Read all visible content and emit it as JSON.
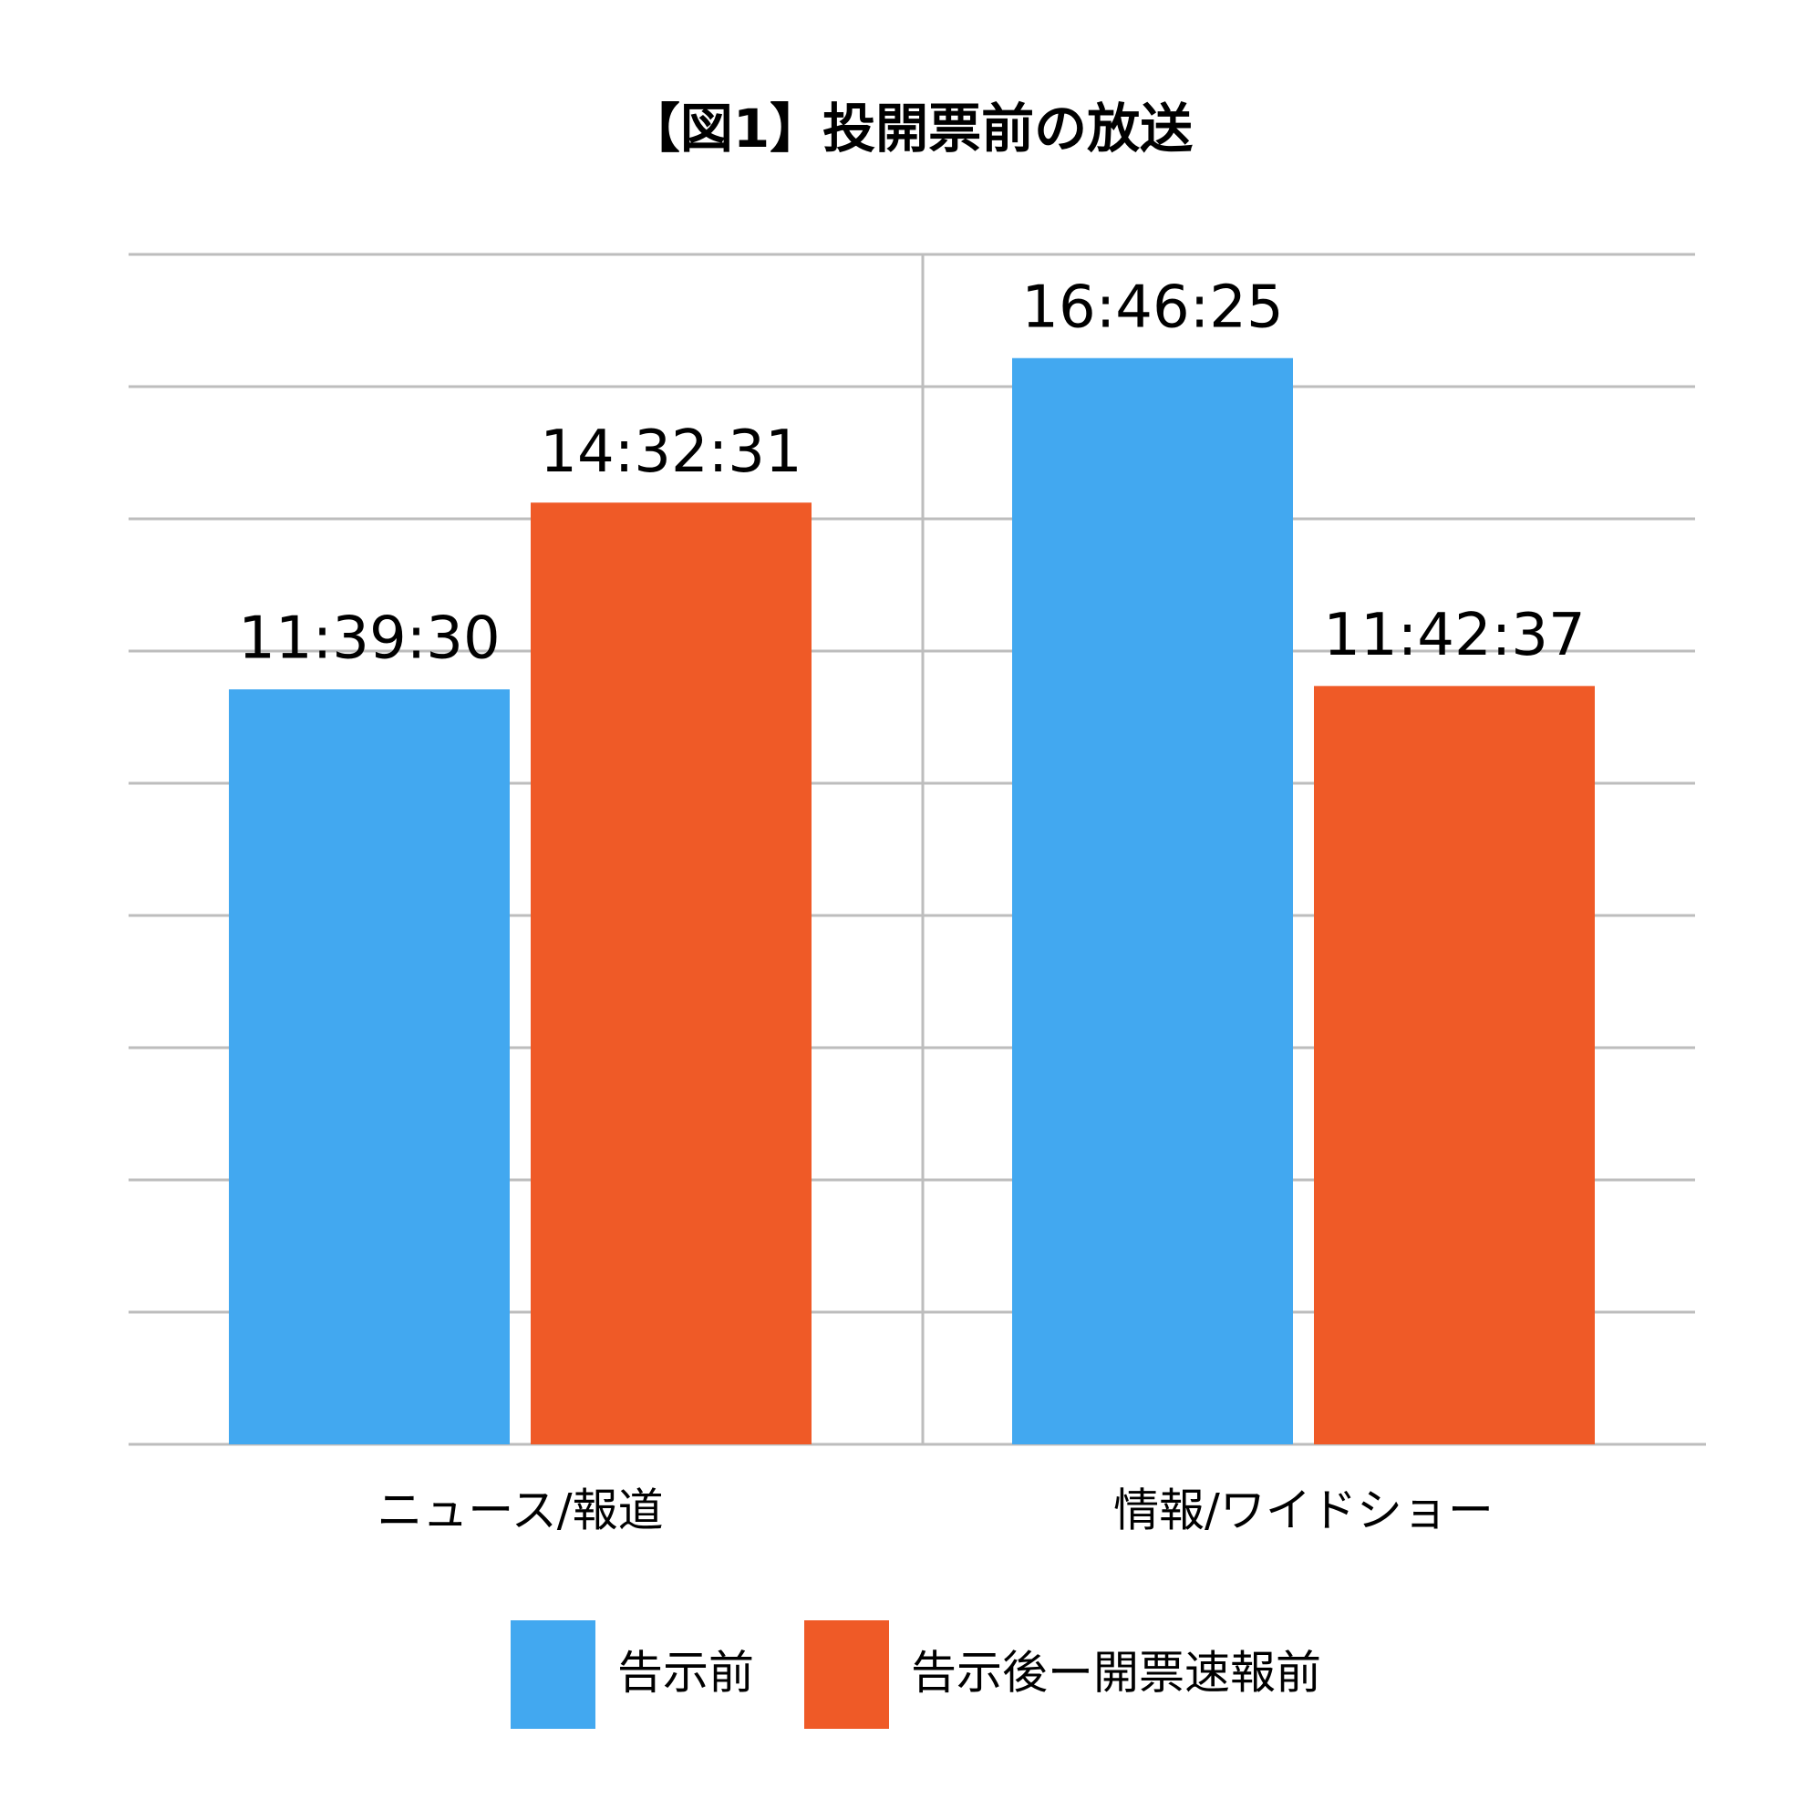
{
  "chart_data": {
    "type": "bar",
    "title": "【図1】投開票前の放送",
    "categories": [
      "ニュース/報道",
      "情報/ワイドショー"
    ],
    "series": [
      {
        "name": "告示前",
        "color": "#42a8f0",
        "values": [
          41970,
          60385
        ],
        "value_labels": [
          "11:39:30",
          "16:46:25"
        ]
      },
      {
        "name": "告示後ー開票速報前",
        "color": "#ef5a27",
        "values": [
          52351,
          42157
        ],
        "value_labels": [
          "14:32:31",
          "11:42:37"
        ]
      }
    ],
    "ylim": [
      0,
      66150
    ],
    "yticks": [
      0,
      7350,
      14700,
      22050,
      29400,
      36750,
      44100,
      51450,
      58800,
      66150
    ],
    "grid": true
  }
}
